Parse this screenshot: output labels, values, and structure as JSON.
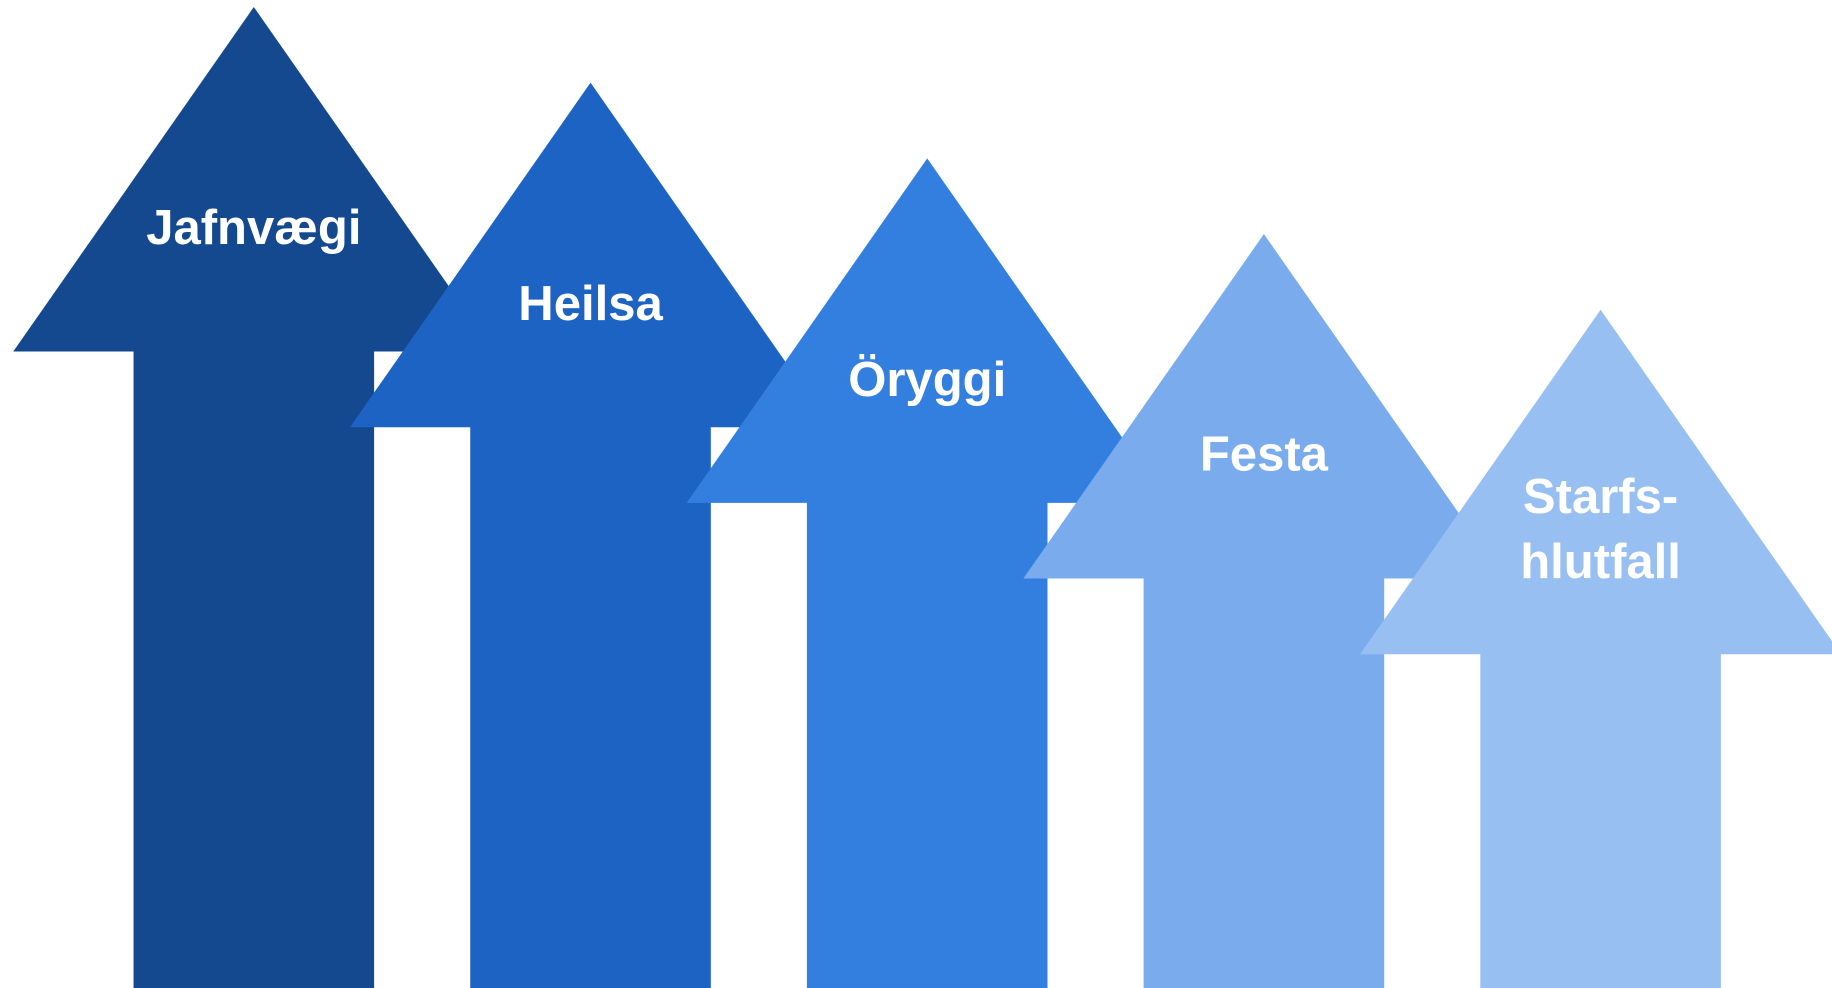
{
  "arrows": [
    {
      "lines": [
        "Jafnvægi"
      ]
    },
    {
      "lines": [
        "Heilsa"
      ]
    },
    {
      "lines": [
        "Öryggi"
      ]
    },
    {
      "lines": [
        "Festa"
      ]
    },
    {
      "lines": [
        "Starfs-",
        "hlutfall"
      ]
    }
  ]
}
